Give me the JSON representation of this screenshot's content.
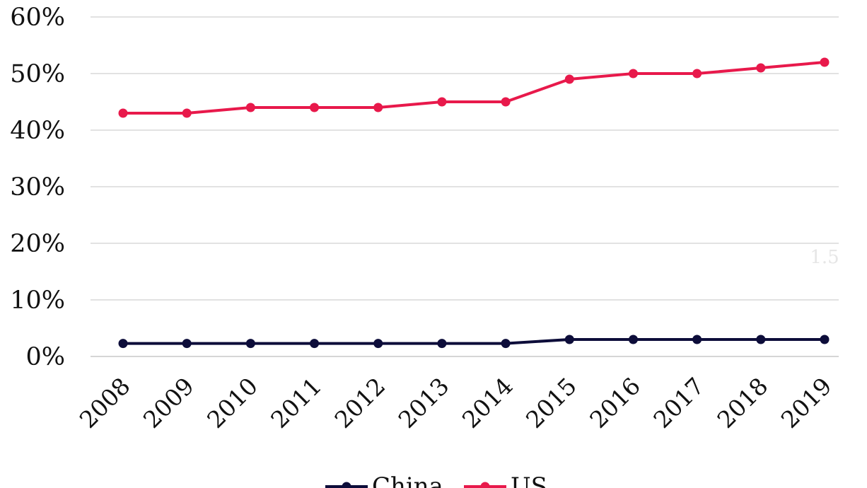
{
  "chart_data": {
    "type": "line",
    "categories": [
      "2008",
      "2009",
      "2010",
      "2011",
      "2012",
      "2013",
      "2014",
      "2015",
      "2016",
      "2017",
      "2018",
      "2019"
    ],
    "series": [
      {
        "name": "China",
        "color": "#0d0d3a",
        "values": [
          2.3,
          2.3,
          2.3,
          2.3,
          2.3,
          2.3,
          2.3,
          3.0,
          3.0,
          3.0,
          3.0,
          3.0
        ]
      },
      {
        "name": "US",
        "color": "#e8194b",
        "values": [
          43,
          43,
          44,
          44,
          44,
          45,
          45,
          49,
          50,
          50,
          51,
          52
        ]
      }
    ],
    "y_ticks": [
      "0%",
      "10%",
      "20%",
      "30%",
      "40%",
      "50%",
      "60%"
    ],
    "ylim": [
      0,
      60
    ],
    "grid": true,
    "legend_position": "bottom",
    "watermark": "1.5"
  }
}
